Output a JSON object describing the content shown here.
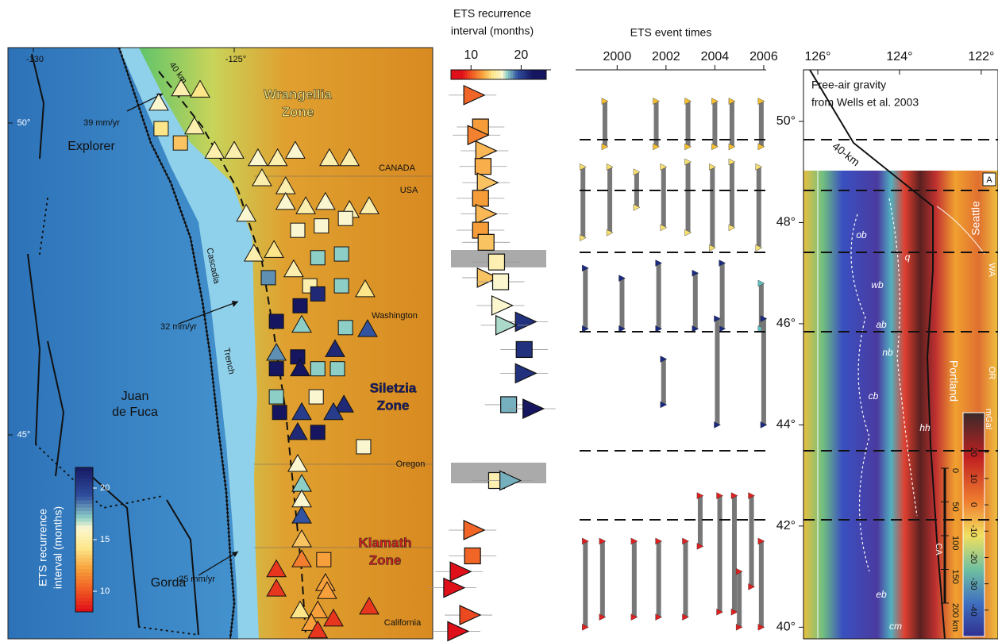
{
  "map": {
    "lon_ticks": [
      -130,
      {
        "value": -125,
        "label": "-125°"
      }
    ],
    "lat_ticks": [
      {
        "value": 50,
        "label": "50°"
      },
      {
        "value": 45,
        "label": "45°"
      }
    ],
    "labels": {
      "explorer": "Explorer",
      "juan": "Juan",
      "de_fuca": "de Fuca",
      "gorda": "Gorda",
      "cascadia": "Cascadia",
      "trench": "Trench",
      "canada": "CANADA",
      "usa": "USA",
      "washington": "Washington",
      "oregon": "Oregon",
      "california": "California",
      "slab": "40 km",
      "rate_north": "39 mm/yr",
      "rate_mid": "32 mm/yr",
      "rate_south": "25 mm/yr"
    },
    "zones": {
      "wrangellia": [
        "Wrangellia",
        "Zone"
      ],
      "siletzia": [
        "Siletzia",
        "Zone"
      ],
      "klamath": [
        "Klamath",
        "Zone"
      ]
    },
    "colorbar": {
      "label": [
        "ETS recurrence",
        "interval (months)"
      ],
      "lim": [
        8,
        22
      ],
      "ticks": [
        10,
        15,
        20
      ]
    },
    "markers": [
      [
        -126.88,
        50.32,
        "t",
        16
      ],
      [
        -126.32,
        50.55,
        "t",
        15
      ],
      [
        -125.85,
        50.53,
        "t",
        14
      ],
      [
        -126.82,
        49.91,
        "s",
        14
      ],
      [
        -126.34,
        49.68,
        "s",
        13
      ],
      [
        -125.99,
        49.94,
        "t",
        15
      ],
      [
        -125.49,
        49.55,
        "t",
        15
      ],
      [
        -125.0,
        49.55,
        "t",
        15
      ],
      [
        -124.41,
        49.43,
        "t",
        16
      ],
      [
        -123.92,
        49.43,
        "t",
        15
      ],
      [
        -123.48,
        49.55,
        "t",
        16
      ],
      [
        -124.31,
        49.11,
        "t",
        15
      ],
      [
        -123.72,
        48.98,
        "t",
        15
      ],
      [
        -122.63,
        49.43,
        "t",
        15
      ],
      [
        -122.13,
        49.43,
        "t",
        15
      ],
      [
        -124.7,
        48.54,
        "t",
        16
      ],
      [
        -123.72,
        48.73,
        "t",
        16
      ],
      [
        -123.22,
        48.66,
        "t",
        15
      ],
      [
        -122.73,
        48.73,
        "t",
        16
      ],
      [
        -122.13,
        48.6,
        "t",
        15
      ],
      [
        -121.64,
        48.66,
        "t",
        15
      ],
      [
        -123.42,
        48.28,
        "s",
        16
      ],
      [
        -122.83,
        48.35,
        "s",
        16
      ],
      [
        -122.23,
        48.47,
        "s",
        16
      ],
      [
        -124.51,
        47.9,
        "t",
        15
      ],
      [
        -124.01,
        47.96,
        "t",
        14
      ],
      [
        -122.92,
        47.84,
        "s",
        17
      ],
      [
        -122.33,
        47.9,
        "s",
        17
      ],
      [
        -124.15,
        47.52,
        "s",
        18
      ],
      [
        -123.52,
        47.65,
        "t",
        15
      ],
      [
        -123.12,
        47.39,
        "s",
        15
      ],
      [
        -122.33,
        47.39,
        "s",
        17
      ],
      [
        -121.74,
        47.33,
        "t",
        14
      ],
      [
        -123.36,
        47.07,
        "s",
        22
      ],
      [
        -122.92,
        47.26,
        "s",
        21
      ],
      [
        -123.95,
        46.82,
        "s",
        22
      ],
      [
        -123.32,
        46.76,
        "t",
        17
      ],
      [
        -122.23,
        46.72,
        "s",
        17
      ],
      [
        -121.68,
        46.69,
        "t",
        19
      ],
      [
        -123.95,
        46.31,
        "t",
        18
      ],
      [
        -123.42,
        46.25,
        "s",
        22
      ],
      [
        -122.49,
        46.37,
        "t",
        21
      ],
      [
        -123.95,
        46.06,
        "s",
        22
      ],
      [
        -123.36,
        46.06,
        "t",
        22
      ],
      [
        -122.92,
        46.06,
        "s",
        17
      ],
      [
        -122.43,
        46.06,
        "s",
        17
      ],
      [
        -123.95,
        45.61,
        "s",
        17
      ],
      [
        -122.96,
        45.61,
        "s",
        16
      ],
      [
        -122.27,
        45.48,
        "t",
        21
      ],
      [
        -123.87,
        45.36,
        "s",
        22
      ],
      [
        -123.32,
        45.36,
        "t",
        20
      ],
      [
        -122.53,
        45.36,
        "t",
        20
      ],
      [
        -123.42,
        45.04,
        "t",
        21
      ],
      [
        -122.92,
        45.04,
        "s",
        22
      ],
      [
        -121.78,
        44.81,
        "s",
        16
      ],
      [
        -123.42,
        44.53,
        "t",
        16
      ],
      [
        -123.32,
        44.21,
        "t",
        17
      ],
      [
        -123.32,
        43.96,
        "t",
        16
      ],
      [
        -123.32,
        43.7,
        "t",
        19
      ],
      [
        -123.32,
        43.32,
        "t",
        13
      ],
      [
        -123.32,
        43.0,
        "t",
        11
      ],
      [
        -122.77,
        43.0,
        "s",
        12
      ],
      [
        -122.73,
        42.62,
        "t",
        12
      ],
      [
        -123.95,
        42.84,
        "t",
        9
      ],
      [
        -123.95,
        42.53,
        "t",
        9
      ],
      [
        -122.69,
        42.49,
        "t",
        12
      ],
      [
        -121.64,
        42.24,
        "t",
        9
      ],
      [
        -123.36,
        42.18,
        "t",
        14
      ],
      [
        -122.92,
        42.18,
        "t",
        12
      ],
      [
        -123.08,
        41.98,
        "t",
        12
      ],
      [
        -122.53,
        42.05,
        "t",
        9
      ],
      [
        -122.92,
        41.86,
        "t",
        9
      ]
    ]
  },
  "recurrence": {
    "title": [
      "ETS recurrence",
      "interval (months)"
    ],
    "xlim": [
      6,
      25
    ],
    "xticks": [
      10,
      20
    ],
    "markers": [
      [
        50.52,
        10.3,
        "t"
      ],
      [
        49.89,
        11.9,
        "s"
      ],
      [
        49.73,
        11.1,
        "t"
      ],
      [
        49.42,
        12.7,
        "t"
      ],
      [
        49.11,
        12.4,
        "s"
      ],
      [
        48.79,
        13.0,
        "t"
      ],
      [
        48.48,
        11.9,
        "s"
      ],
      [
        48.17,
        12.7,
        "t"
      ],
      [
        47.85,
        11.9,
        "s"
      ],
      [
        47.61,
        13.0,
        "s"
      ],
      [
        47.22,
        15.1,
        "s"
      ],
      [
        46.91,
        13.0,
        "t"
      ],
      [
        46.83,
        15.9,
        "s"
      ],
      [
        46.36,
        15.9,
        "t"
      ],
      [
        46.04,
        20.6,
        "t"
      ],
      [
        45.97,
        16.7,
        "t"
      ],
      [
        45.49,
        20.6,
        "s"
      ],
      [
        45.02,
        20.6,
        "t"
      ],
      [
        44.4,
        17.5,
        "s"
      ],
      [
        44.32,
        22.1,
        "t"
      ],
      [
        42.9,
        15.1,
        "s"
      ],
      [
        42.9,
        17.5,
        "t"
      ],
      [
        41.92,
        10.3,
        "t"
      ],
      [
        41.41,
        10.3,
        "s"
      ],
      [
        41.1,
        7.6,
        "t"
      ],
      [
        40.78,
        6.3,
        "t"
      ],
      [
        40.24,
        9.5,
        "t"
      ],
      [
        39.92,
        7.1,
        "t"
      ]
    ]
  },
  "events": {
    "title": "ETS event times",
    "xlim": [
      1998.3,
      2006.1
    ],
    "xticks": [
      2000,
      2002,
      2004,
      2006
    ],
    "bars": [
      [
        1999.5,
        50.4,
        49.5,
        "#f5c030"
      ],
      [
        2001.6,
        50.4,
        49.5,
        "#f5c030"
      ],
      [
        2002.9,
        50.4,
        49.5,
        "#f5c030"
      ],
      [
        2004.0,
        50.4,
        49.5,
        "#f5c030"
      ],
      [
        2004.7,
        50.4,
        49.5,
        "#f5c030"
      ],
      [
        2005.9,
        50.4,
        49.5,
        "#f5c030"
      ],
      [
        1998.6,
        49.1,
        47.7,
        "#f8e070"
      ],
      [
        1999.7,
        49.1,
        47.8,
        "#f8e070"
      ],
      [
        2000.8,
        49.0,
        48.3,
        "#f8e070"
      ],
      [
        2001.9,
        49.1,
        47.9,
        "#f8e070"
      ],
      [
        2002.9,
        49.2,
        47.8,
        "#f8e070"
      ],
      [
        2003.9,
        49.1,
        47.5,
        "#f8e070"
      ],
      [
        2004.7,
        49.2,
        47.9,
        "#f8e070"
      ],
      [
        2005.8,
        49.1,
        47.5,
        "#f8e070"
      ],
      [
        1998.7,
        47.1,
        45.9,
        "#1a2a80"
      ],
      [
        2000.2,
        46.9,
        45.9,
        "#1a2a80"
      ],
      [
        2001.7,
        47.2,
        45.9,
        "#1a2a80"
      ],
      [
        2003.2,
        47.0,
        45.9,
        "#1a2a80"
      ],
      [
        2004.3,
        47.2,
        45.9,
        "#1a2a80"
      ],
      [
        2005.9,
        46.8,
        45.9,
        "#60c0c0"
      ],
      [
        2004.1,
        46.1,
        44.0,
        "#1a2a80"
      ],
      [
        2001.9,
        45.3,
        44.4,
        "#1a2a80"
      ],
      [
        2006.0,
        46.1,
        44.0,
        "#1a2a80"
      ],
      [
        2003.4,
        42.6,
        41.6,
        "#e02020"
      ],
      [
        2004.2,
        42.6,
        40.3,
        "#e02020"
      ],
      [
        2004.8,
        42.6,
        40.3,
        "#e02020"
      ],
      [
        2005.5,
        42.6,
        40.8,
        "#e02020"
      ],
      [
        1998.7,
        41.7,
        40.0,
        "#e02020"
      ],
      [
        1999.4,
        41.7,
        40.2,
        "#e02020"
      ],
      [
        2000.7,
        41.7,
        40.2,
        "#e02020"
      ],
      [
        2001.7,
        41.7,
        40.2,
        "#e02020"
      ],
      [
        2002.8,
        41.7,
        40.2,
        "#e02020"
      ],
      [
        2005.0,
        41.1,
        40.0,
        "#e02020"
      ],
      [
        2005.9,
        41.7,
        40.0,
        "#e02020"
      ]
    ]
  },
  "gravity": {
    "title": [
      "Free-air gravity",
      "from Wells et al. 2003"
    ],
    "xlim": [
      126.35,
      121.59
    ],
    "ylim": [
      39.77,
      51.02
    ],
    "lon_ticks": [
      {
        "value": 126,
        "label": "126°"
      },
      {
        "value": 124,
        "label": "124°"
      },
      {
        "value": 122,
        "label": "122°"
      }
    ],
    "lat_ticks": [
      {
        "value": 50,
        "label": "50°"
      },
      {
        "value": 48,
        "label": "48°"
      },
      {
        "value": 46,
        "label": "46°"
      },
      {
        "value": 44,
        "label": "44°"
      },
      {
        "value": 42,
        "label": "42°"
      },
      {
        "value": 40,
        "label": "40°"
      }
    ],
    "labels": {
      "slab": "40-km",
      "seattle": "Seattle",
      "portland": "Portland",
      "panel": "A",
      "wa": "WA",
      "or": "OR",
      "ca": "CA",
      "ob": "ob",
      "q": "q",
      "wb": "wb",
      "ab": "ab",
      "nb": "nb",
      "cb": "cb",
      "hh": "hh",
      "eb": "eb",
      "cm": "cm"
    },
    "mgal": {
      "label": "mGal",
      "lim": [
        -50,
        35
      ],
      "ticks": [
        20,
        10,
        0,
        -10,
        -20,
        -30,
        -40
      ]
    },
    "scale_bar": {
      "ticks": [
        0,
        50,
        100,
        150,
        {
          "value": 200,
          "label": "200 km"
        }
      ]
    }
  }
}
